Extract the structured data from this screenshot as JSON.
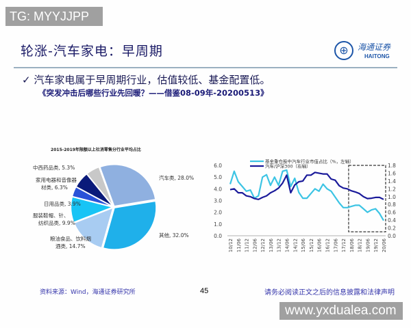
{
  "watermarks": {
    "top": "TG: MYYJJPP",
    "bottom": "www.yxdualea.com"
  },
  "header": {
    "title": "轮涨-汽车家电：早周期",
    "logo_cn": "海通证券",
    "logo_en": "HAITONG"
  },
  "body": {
    "bullet": "✓ 汽车家电属于早周期行业，估值较低、基金配置低。",
    "reference": "《突发冲击后哪些行业先回暖？——借鉴08-09年-20200513》"
  },
  "footer": {
    "source": "资料来源：Wind，海通证券研究所",
    "page": "45",
    "disclaimer": "请务必阅读正文之后的信息披露和法律声明"
  },
  "chart_data": [
    {
      "type": "pie",
      "title": "2015-2019年限额以上社消零售分行业平均占比",
      "slices": [
        {
          "label": [
            "汽车类, 28.0%"
          ],
          "value": 28.0,
          "color": "#8fb0e0"
        },
        {
          "label": [
            "其他, 32.0%"
          ],
          "value": 32.0,
          "color": "#1fb0ea"
        },
        {
          "label": [
            "粮油食品、饮料烟",
            "酒类, 14.7%"
          ],
          "value": 14.7,
          "color": "#a8ccf2"
        },
        {
          "label": [
            "服装鞋帽、针、",
            "纺织品类, 9.9%"
          ],
          "value": 9.9,
          "color": "#18c4f5"
        },
        {
          "label": [
            "日用品类, 3.9%"
          ],
          "value": 3.9,
          "color": "#2a52d8"
        },
        {
          "label": [
            "家用电器和音像器",
            "材类, 6.3%"
          ],
          "value": 6.3,
          "color": "#0a1a7a"
        },
        {
          "label": [
            "中西药品类, 5.3%"
          ],
          "value": 5.3,
          "color": "#c8c8c8"
        }
      ]
    },
    {
      "type": "line",
      "x": [
        "10/12",
        "11/03",
        "11/06",
        "11/09",
        "11/12",
        "12/03",
        "12/06",
        "12/09",
        "12/12",
        "13/03",
        "13/06",
        "13/09",
        "13/12",
        "14/03",
        "14/06",
        "14/09",
        "14/12",
        "15/03",
        "15/06",
        "15/09",
        "15/12",
        "16/03",
        "16/06",
        "16/09",
        "16/12",
        "17/03",
        "17/06",
        "17/09",
        "17/12",
        "18/03",
        "18/06",
        "18/09",
        "18/12",
        "19/03",
        "19/06",
        "19/09",
        "19/12",
        "20/03",
        "20/06"
      ],
      "x_tick_labels": [
        "10/12",
        "11/06",
        "11/12",
        "12/06",
        "12/12",
        "13/06",
        "13/12",
        "14/06",
        "14/12",
        "15/06",
        "15/12",
        "16/06",
        "16/12",
        "17/06",
        "17/12",
        "18/06",
        "18/12",
        "19/06",
        "19/12",
        "20/06"
      ],
      "y_left": {
        "range": [
          0,
          6
        ],
        "ticks": [
          "0.0",
          "1.0",
          "2.0",
          "3.0",
          "4.0",
          "5.0",
          "6.0"
        ]
      },
      "y_right": {
        "range": [
          0,
          1.8
        ],
        "ticks": [
          "0.0",
          "0.2",
          "0.4",
          "0.6",
          "0.8",
          "1.0",
          "1.2",
          "1.4",
          "1.6",
          "1.8"
        ]
      },
      "series": [
        {
          "name": "基金重仓股中汽车行业市值占比（%，左轴）",
          "axis": "left",
          "color": "#3cc4e4",
          "values": [
            4.4,
            5.5,
            4.6,
            4.2,
            3.8,
            3.9,
            3.2,
            3.4,
            5.0,
            5.2,
            4.3,
            5.0,
            4.3,
            5.5,
            5.6,
            4.2,
            4.9,
            3.7,
            3.2,
            3.2,
            3.6,
            4.0,
            3.8,
            4.4,
            4.0,
            3.8,
            3.3,
            2.8,
            2.4,
            2.4,
            2.5,
            2.6,
            2.6,
            2.3,
            2.0,
            2.2,
            2.3,
            1.9,
            1.3
          ]
        },
        {
          "name": "汽车/沪深300（右轴）",
          "axis": "right",
          "color": "#1a1a9a",
          "values": [
            1.18,
            1.2,
            1.1,
            1.1,
            1.02,
            1.0,
            0.95,
            0.93,
            0.98,
            1.02,
            1.1,
            1.15,
            1.22,
            1.35,
            1.55,
            1.1,
            1.3,
            1.38,
            1.4,
            1.55,
            1.55,
            1.62,
            1.6,
            1.58,
            1.58,
            1.45,
            1.42,
            1.28,
            1.22,
            1.2,
            1.15,
            1.12,
            1.08,
            1.0,
            0.95,
            0.96,
            0.98,
            0.98,
            0.93
          ]
        }
      ],
      "highlight_box": {
        "x_from": "18/03",
        "x_to": "20/06",
        "right_axis_from": 0.1,
        "right_axis_to": 1.8,
        "style": "dashed"
      },
      "grid": false,
      "legend": "top"
    }
  ]
}
